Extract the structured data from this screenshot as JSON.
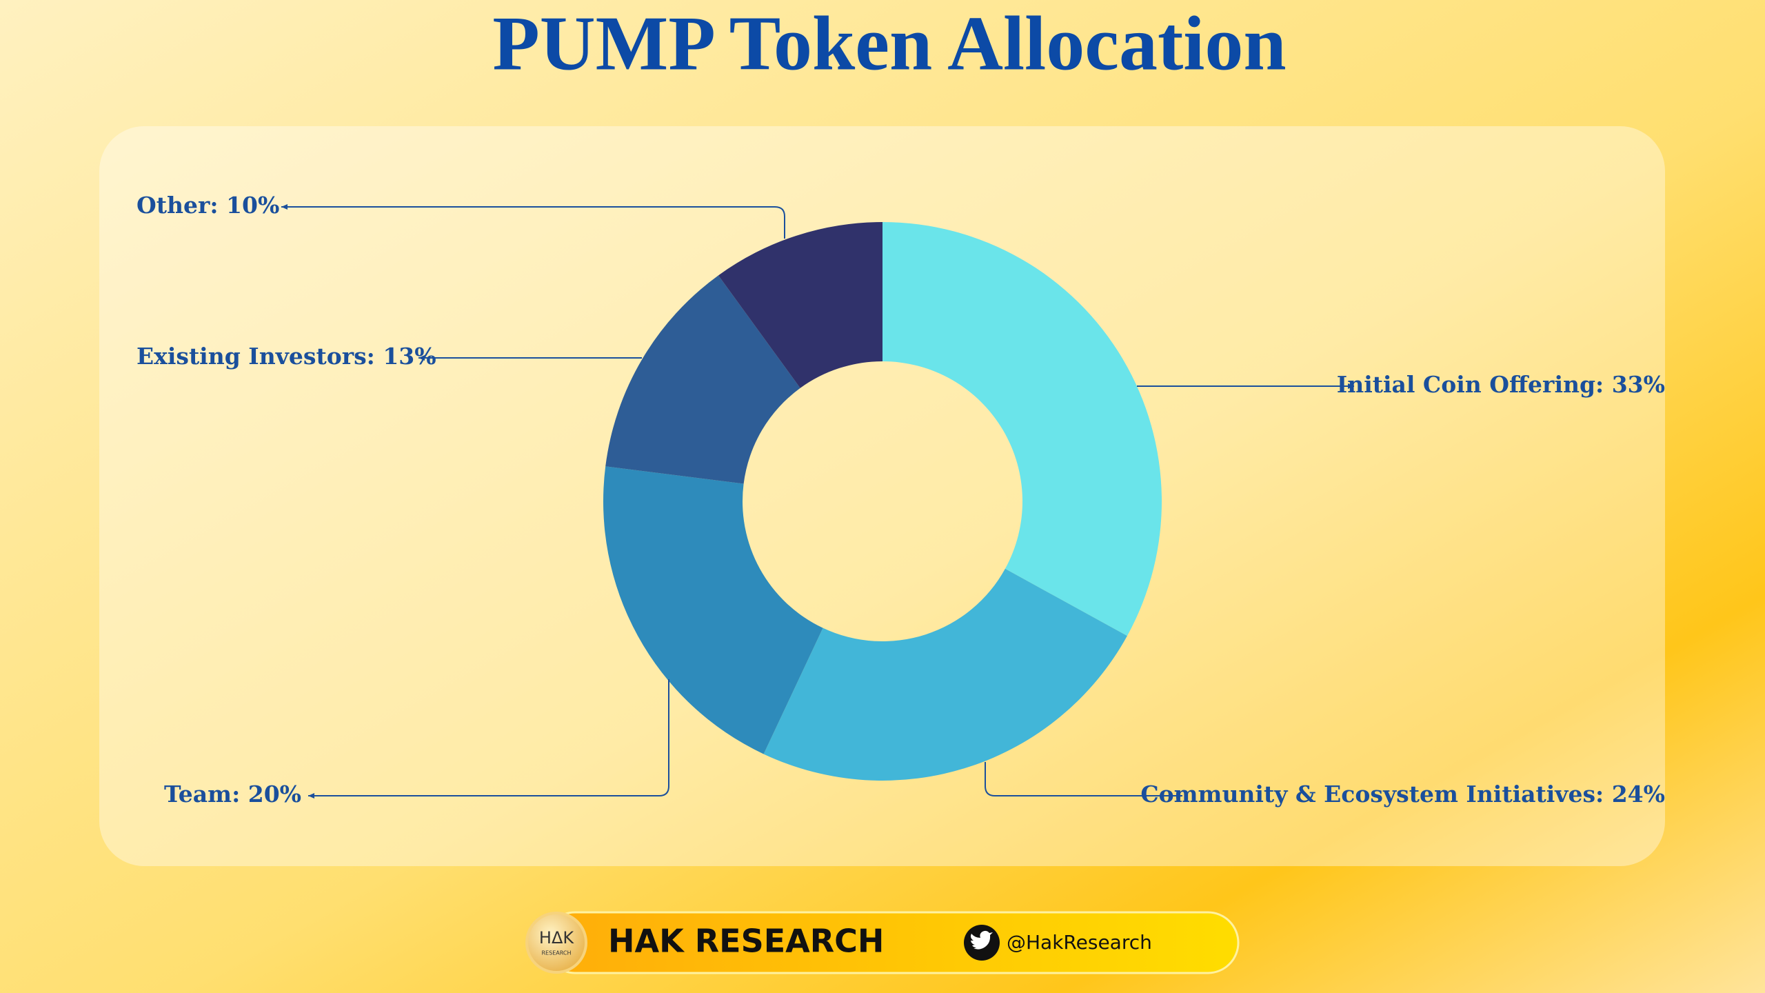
{
  "chart_data": {
    "type": "donut",
    "title": "PUMP Token Allocation",
    "categories": [
      "Initial Coin Offering: 33%",
      "Community & Ecosystem Initiatives: 24%",
      "Team: 20%",
      "Existing Investors: 13%",
      "Other: 10%"
    ],
    "values": [
      33,
      24,
      20,
      13,
      10
    ],
    "colors": [
      "#6ae4ea",
      "#42b6d8",
      "#2e8bbb",
      "#2e5d96",
      "#30326b"
    ]
  },
  "footer": {
    "logo": "HΔK",
    "logo_sub": "RESEARCH",
    "brand": "HAK RESEARCH",
    "handle": "@HakResearch"
  }
}
